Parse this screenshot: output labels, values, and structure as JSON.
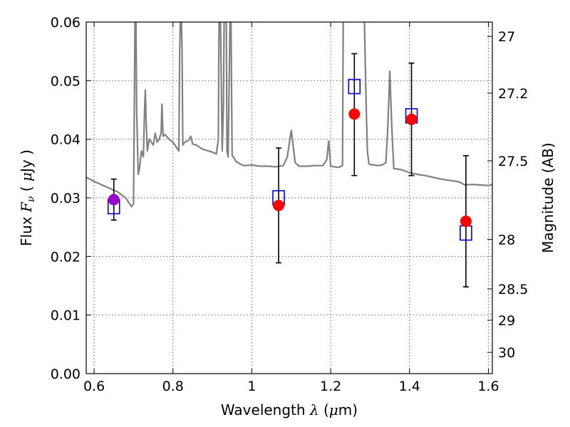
{
  "chart_data": {
    "type": "scatter",
    "title": "",
    "xlabel": "Wavelength  λ (μm)",
    "ylabel": "Flux  Fν  ( μJy )",
    "y2label": "Magnitude (AB)",
    "xlim": [
      0.58,
      1.61
    ],
    "ylim": [
      0.0,
      0.06
    ],
    "grid": true,
    "x_ticks": [
      0.6,
      0.8,
      1.0,
      1.2,
      1.4,
      1.6
    ],
    "x_tick_labels": [
      "0.6",
      "0.8",
      "1",
      "1.2",
      "1.4",
      "1.6"
    ],
    "y_ticks": [
      0.0,
      0.01,
      0.02,
      0.03,
      0.04,
      0.05,
      0.06
    ],
    "y_tick_labels": [
      "0.00",
      "0.01",
      "0.02",
      "0.03",
      "0.04",
      "0.05",
      "0.06"
    ],
    "y2_ticks": [
      27,
      27.2,
      27.5,
      28,
      28.5,
      29,
      30
    ],
    "y2_tick_labels": [
      "27",
      "27.2",
      "27.5",
      "28",
      "28.5",
      "29",
      "30"
    ],
    "colors": {
      "model": "#808080",
      "observed": "#ff0000",
      "observed_first": "#9900cc",
      "synthetic": "#0000cc",
      "errorbar": "#000000"
    },
    "series": [
      {
        "marker": "filled-circle",
        "x": [
          0.65,
          1.068,
          1.26,
          1.405,
          1.543
        ],
        "y": [
          0.0297,
          0.0287,
          0.0443,
          0.0434,
          0.026
        ],
        "yerr_low": [
          0.0262,
          0.0189,
          0.0338,
          0.0338,
          0.0148
        ],
        "yerr_high": [
          0.0332,
          0.0385,
          0.0546,
          0.053,
          0.0372
        ]
      },
      {
        "marker": "open-square",
        "x": [
          0.65,
          1.068,
          1.26,
          1.405,
          1.543
        ],
        "y": [
          0.0285,
          0.03,
          0.049,
          0.044,
          0.024
        ]
      },
      {
        "marker": "line",
        "x": [
          0.58,
          0.6,
          0.62,
          0.64,
          0.66,
          0.68,
          0.69,
          0.695,
          0.7,
          0.702,
          0.704,
          0.706,
          0.708,
          0.712,
          0.715,
          0.72,
          0.725,
          0.728,
          0.73,
          0.732,
          0.735,
          0.74,
          0.745,
          0.75,
          0.755,
          0.76,
          0.765,
          0.77,
          0.772,
          0.775,
          0.78,
          0.79,
          0.8,
          0.81,
          0.815,
          0.817,
          0.819,
          0.821,
          0.823,
          0.825,
          0.83,
          0.84,
          0.845,
          0.85,
          0.86,
          0.87,
          0.88,
          0.89,
          0.9,
          0.91,
          0.915,
          0.917,
          0.92,
          0.925,
          0.928,
          0.93,
          0.935,
          0.937,
          0.94,
          0.945,
          0.947,
          0.95,
          0.955,
          0.96,
          0.97,
          0.98,
          1.0,
          1.02,
          1.04,
          1.06,
          1.08,
          1.09,
          1.1,
          1.11,
          1.12,
          1.14,
          1.16,
          1.18,
          1.19,
          1.195,
          1.2,
          1.21,
          1.22,
          1.23,
          1.232,
          1.235,
          1.24,
          1.25,
          1.27,
          1.28,
          1.285,
          1.29,
          1.293,
          1.297,
          1.3,
          1.31,
          1.32,
          1.33,
          1.34,
          1.345,
          1.35,
          1.355,
          1.36,
          1.38,
          1.4,
          1.42,
          1.44,
          1.46,
          1.48,
          1.5,
          1.52,
          1.53,
          1.54,
          1.56,
          1.58,
          1.6,
          1.61
        ],
        "y": [
          0.0335,
          0.0328,
          0.0322,
          0.0316,
          0.031,
          0.03,
          0.029,
          0.0285,
          0.029,
          0.045,
          0.062,
          0.062,
          0.045,
          0.034,
          0.035,
          0.038,
          0.037,
          0.045,
          0.0484,
          0.043,
          0.038,
          0.04,
          0.0395,
          0.039,
          0.041,
          0.0395,
          0.04,
          0.041,
          0.046,
          0.0405,
          0.0408,
          0.04,
          0.0395,
          0.0385,
          0.038,
          0.055,
          0.062,
          0.062,
          0.055,
          0.039,
          0.0395,
          0.0398,
          0.0405,
          0.0392,
          0.039,
          0.0385,
          0.0382,
          0.038,
          0.0378,
          0.0375,
          0.04,
          0.062,
          0.062,
          0.038,
          0.046,
          0.062,
          0.062,
          0.038,
          0.037,
          0.062,
          0.062,
          0.0372,
          0.0368,
          0.0362,
          0.0358,
          0.0355,
          0.0356,
          0.0354,
          0.0354,
          0.0353,
          0.0355,
          0.037,
          0.0415,
          0.036,
          0.0354,
          0.0354,
          0.0355,
          0.0355,
          0.0365,
          0.0397,
          0.0354,
          0.0353,
          0.0352,
          0.0355,
          0.062,
          0.062,
          0.062,
          0.062,
          0.062,
          0.062,
          0.062,
          0.046,
          0.038,
          0.0358,
          0.0357,
          0.0356,
          0.0355,
          0.0356,
          0.036,
          0.042,
          0.0516,
          0.042,
          0.035,
          0.0348,
          0.0343,
          0.034,
          0.0338,
          0.0335,
          0.0332,
          0.033,
          0.0328,
          0.0326,
          0.0322,
          0.0323,
          0.0322,
          0.0321,
          0.0323
        ]
      }
    ]
  }
}
